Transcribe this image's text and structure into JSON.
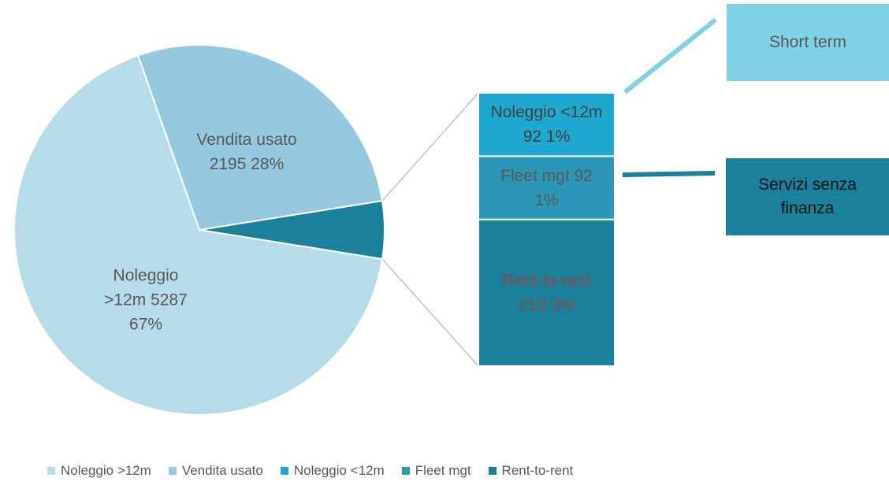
{
  "chart_data": {
    "type": "pie-of-bar",
    "pie": {
      "categories": [
        "Noleggio >12m",
        "Vendita usato"
      ],
      "values": [
        5287,
        2195
      ],
      "value_labels": [
        "Noleggio >12m 5287 67%",
        "Vendita usato 2195 28%"
      ],
      "colors": [
        "#b6dbe9",
        "#94c9df"
      ]
    },
    "bar": {
      "categories": [
        "Noleggio <12m",
        "Fleet mgt",
        "Rent-to-rent"
      ],
      "values": [
        92,
        92,
        213
      ],
      "value_labels": [
        "Noleggio <12m 92 1%",
        "Fleet mgt 92 1%",
        "Rent-to-rent 213 3%"
      ],
      "colors": [
        "#1fa8cf",
        "#2b96b7",
        "#1b809b"
      ]
    },
    "other_color": "#1b809b",
    "annotations": [
      {
        "text": "Short term",
        "color": "#80d0e6"
      },
      {
        "text": "Servizi senza finanza",
        "color": "#1b809b"
      }
    ]
  }
}
